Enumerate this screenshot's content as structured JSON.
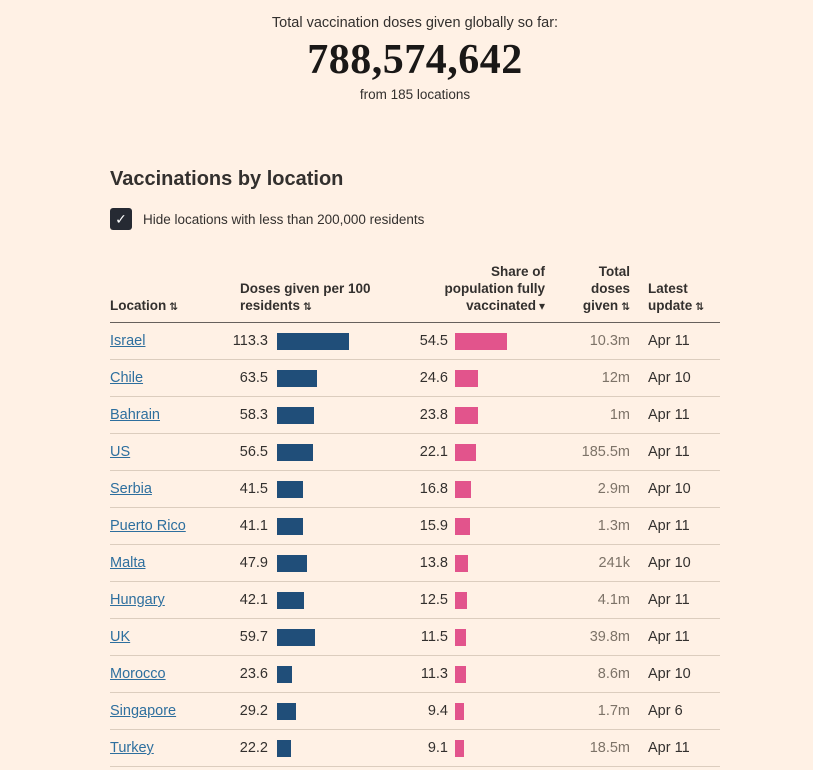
{
  "colors": {
    "background": "#fff1e5",
    "text": "#33302e",
    "secondary_text": "#7d7368",
    "link": "#2e6f9e",
    "doses_bar": "#204e79",
    "share_bar": "#e2548c",
    "checkbox": "#262a33"
  },
  "hero": {
    "line1": "Total vaccination doses given globally so far:",
    "total": "788,574,642",
    "line2": "from 185 locations"
  },
  "section": {
    "title": "Vaccinations by location",
    "filter": {
      "label": "Hide locations with less than 200,000 residents",
      "checked": true
    }
  },
  "table": {
    "headers": {
      "location": "Location",
      "doses": "Doses given per 100 residents",
      "share": "Share of population fully vaccinated",
      "total": "Total doses given",
      "updated": "Latest update"
    },
    "icons": {
      "sort_both": "⇅",
      "sort_active_desc": "▾",
      "checkmark": "✓"
    },
    "sorted_by": "Share of population fully vaccinated (descending)",
    "rows": [
      {
        "location": "Israel",
        "doses_per_100": 113.3,
        "share_fully_vaccinated": 54.5,
        "total_doses": "10.3m",
        "latest_update": "Apr 11"
      },
      {
        "location": "Chile",
        "doses_per_100": 63.5,
        "share_fully_vaccinated": 24.6,
        "total_doses": "12m",
        "latest_update": "Apr 10"
      },
      {
        "location": "Bahrain",
        "doses_per_100": 58.3,
        "share_fully_vaccinated": 23.8,
        "total_doses": "1m",
        "latest_update": "Apr 11"
      },
      {
        "location": "US",
        "doses_per_100": 56.5,
        "share_fully_vaccinated": 22.1,
        "total_doses": "185.5m",
        "latest_update": "Apr 11"
      },
      {
        "location": "Serbia",
        "doses_per_100": 41.5,
        "share_fully_vaccinated": 16.8,
        "total_doses": "2.9m",
        "latest_update": "Apr 10"
      },
      {
        "location": "Puerto Rico",
        "doses_per_100": 41.1,
        "share_fully_vaccinated": 15.9,
        "total_doses": "1.3m",
        "latest_update": "Apr 11"
      },
      {
        "location": "Malta",
        "doses_per_100": 47.9,
        "share_fully_vaccinated": 13.8,
        "total_doses": "241k",
        "latest_update": "Apr 10"
      },
      {
        "location": "Hungary",
        "doses_per_100": 42.1,
        "share_fully_vaccinated": 12.5,
        "total_doses": "4.1m",
        "latest_update": "Apr 11"
      },
      {
        "location": "UK",
        "doses_per_100": 59.7,
        "share_fully_vaccinated": 11.5,
        "total_doses": "39.8m",
        "latest_update": "Apr 11"
      },
      {
        "location": "Morocco",
        "doses_per_100": 23.6,
        "share_fully_vaccinated": 11.3,
        "total_doses": "8.6m",
        "latest_update": "Apr 10"
      },
      {
        "location": "Singapore",
        "doses_per_100": 29.2,
        "share_fully_vaccinated": 9.4,
        "total_doses": "1.7m",
        "latest_update": "Apr 6"
      },
      {
        "location": "Turkey",
        "doses_per_100": 22.2,
        "share_fully_vaccinated": 9.1,
        "total_doses": "18.5m",
        "latest_update": "Apr 11"
      }
    ]
  },
  "chart_data": {
    "type": "table",
    "title": "Vaccinations by location",
    "subtitle": "Total vaccination doses given globally so far: 788,574,642 from 185 locations",
    "columns": [
      "Location",
      "Doses given per 100 residents",
      "Share of population fully vaccinated",
      "Total doses given",
      "Latest update"
    ],
    "sorted_by": "Share of population fully vaccinated (descending)",
    "categories": [
      "Israel",
      "Chile",
      "Bahrain",
      "US",
      "Serbia",
      "Puerto Rico",
      "Malta",
      "Hungary",
      "UK",
      "Morocco",
      "Singapore",
      "Turkey"
    ],
    "series": [
      {
        "name": "Doses given per 100 residents",
        "type": "bar",
        "color": "#204e79",
        "values": [
          113.3,
          63.5,
          58.3,
          56.5,
          41.5,
          41.1,
          47.9,
          42.1,
          59.7,
          23.6,
          29.2,
          22.2
        ]
      },
      {
        "name": "Share of population fully vaccinated",
        "type": "bar",
        "color": "#e2548c",
        "values": [
          54.5,
          24.6,
          23.8,
          22.1,
          16.8,
          15.9,
          13.8,
          12.5,
          11.5,
          11.3,
          9.4,
          9.1
        ]
      }
    ],
    "total_doses_given": [
      "10.3m",
      "12m",
      "1m",
      "185.5m",
      "2.9m",
      "1.3m",
      "241k",
      "4.1m",
      "39.8m",
      "8.6m",
      "1.7m",
      "18.5m"
    ],
    "latest_update": [
      "Apr 11",
      "Apr 10",
      "Apr 11",
      "Apr 11",
      "Apr 10",
      "Apr 11",
      "Apr 10",
      "Apr 11",
      "Apr 11",
      "Apr 10",
      "Apr 6",
      "Apr 11"
    ],
    "global_total_doses": "788,574,642",
    "locations_count": 185
  }
}
